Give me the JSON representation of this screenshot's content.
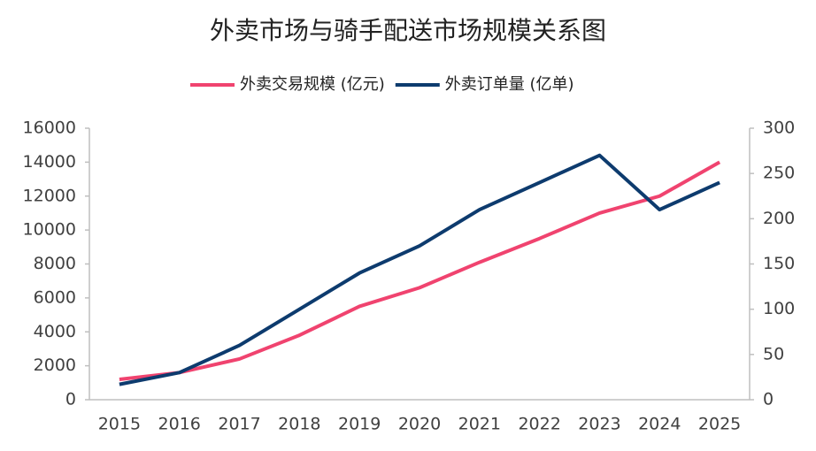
{
  "chart_data": {
    "type": "line",
    "title": "外卖市场与骑手配送市场规模关系图",
    "categories": [
      "2015",
      "2016",
      "2017",
      "2018",
      "2019",
      "2020",
      "2021",
      "2022",
      "2023",
      "2024",
      "2025"
    ],
    "series": [
      {
        "name": "外卖交易规模 (亿元)",
        "color": "#f0436f",
        "values": [
          1200,
          1600,
          2400,
          3800,
          5500,
          6600,
          8100,
          9500,
          11000,
          12000,
          14000
        ]
      },
      {
        "name": "外卖订单量 (亿单)",
        "color": "#0d3b6e",
        "axis": "y2",
        "values": [
          17,
          30,
          60,
          100,
          140,
          170,
          210,
          240,
          270,
          210,
          240
        ]
      }
    ],
    "ylim": [
      0,
      16000
    ],
    "yticks": [
      0,
      2000,
      4000,
      6000,
      8000,
      10000,
      12000,
      14000,
      16000
    ],
    "y2lim": [
      0,
      300
    ],
    "y2ticks": [
      0,
      50,
      100,
      150,
      200,
      250,
      300
    ],
    "legend": "top",
    "grid": false
  }
}
